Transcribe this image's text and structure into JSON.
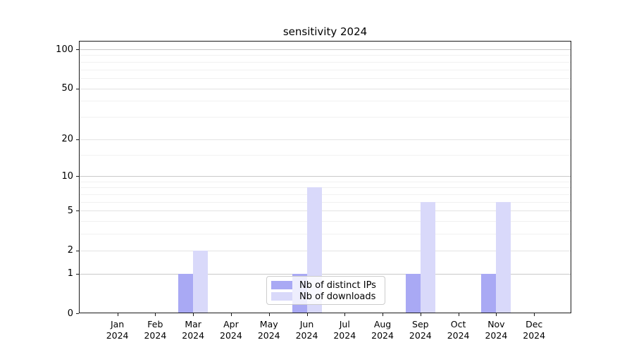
{
  "figure": {
    "title": "sensitivity 2024"
  },
  "chart_data": {
    "type": "bar",
    "title": "sensitivity 2024",
    "categories": [
      "Jan",
      "Feb",
      "Mar",
      "Apr",
      "May",
      "Jun",
      "Jul",
      "Aug",
      "Sep",
      "Oct",
      "Nov",
      "Dec"
    ],
    "category_year": "2024",
    "series": [
      {
        "name": "Nb of distinct IPs",
        "color": "#a9a9f4",
        "values": [
          0,
          0,
          1,
          0,
          0,
          1,
          0,
          0,
          1,
          0,
          1,
          0
        ]
      },
      {
        "name": "Nb of downloads",
        "color": "#d9d9fa",
        "values": [
          0,
          0,
          2,
          0,
          0,
          8,
          0,
          0,
          6,
          0,
          6,
          0
        ]
      }
    ],
    "xlabel": "",
    "ylabel": "",
    "y_scale": "log10(1+x)",
    "ylim": [
      0,
      116
    ],
    "y_major_ticks": [
      0,
      1,
      2,
      5,
      10,
      20,
      50,
      100
    ],
    "y_minor_ticks": [
      3,
      4,
      6,
      7,
      8,
      9,
      15,
      30,
      40,
      60,
      70,
      80,
      90
    ],
    "grid": "horizontal major+minor",
    "legend_position": "lower center inside plot"
  },
  "colors": {
    "bar_distinct_ips": "#a9a9f4",
    "bar_downloads": "#d9d9fa",
    "grid_decade": "#c9c9c9",
    "grid_major": "#e3e3e3",
    "grid_minor": "#f1f1f1",
    "spine": "#1a1a1a",
    "legend_border": "#cccccc"
  }
}
